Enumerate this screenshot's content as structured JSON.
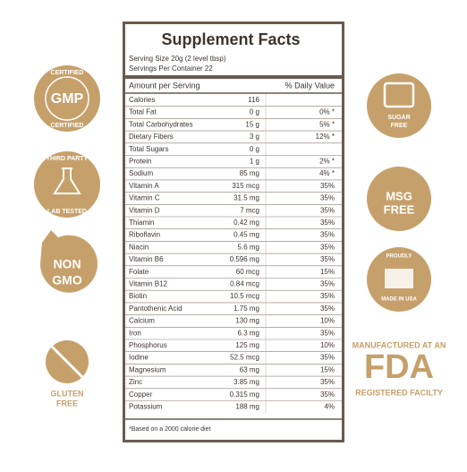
{
  "label": {
    "title": "Supplement Facts",
    "serving_size": "Serving Size 20g (2 level tbsp)",
    "servings": "Servings Per Container 22",
    "header": [
      "Amount per Serving",
      "% Daily Value"
    ],
    "rows": [
      [
        "Calories",
        "116"
      ],
      [
        "Total Fat",
        "0 g",
        "0% *"
      ],
      [
        "Total Carbohydrates",
        "15 g",
        "5% *"
      ],
      [
        "Dietary Fibers",
        "3 g",
        "12% *"
      ],
      [
        "Total Sugars",
        "0 g"
      ],
      [
        "Protein",
        "1 g",
        "2% *"
      ],
      [
        "Sodium",
        "85 mg",
        "4% *"
      ],
      [
        "Vitamin A",
        "315 mcg",
        "35%"
      ],
      [
        "Vitamin C",
        "31.5 mg",
        "35%"
      ],
      [
        "Vitamin D",
        "7 mcg",
        "35%"
      ],
      [
        "Thiamin",
        "0.42 mg",
        "35%"
      ],
      [
        "Riboflavin",
        "0.45 mg",
        "35%"
      ],
      [
        "Niacin",
        "5.6 mg",
        "35%"
      ],
      [
        "Vitamin B6",
        "0.596 mg",
        "35%"
      ],
      [
        "Folate",
        "60 mcg",
        "15%"
      ],
      [
        "Vitamin B12",
        "0.84 mcg",
        "35%"
      ],
      [
        "Biotin",
        "10.5 mcg",
        "35%"
      ],
      [
        "Pantothenic Acid",
        "1.75 mg",
        "35%"
      ],
      [
        "Calcium",
        "130 mg",
        "10%"
      ],
      [
        "Iron",
        "6.3 mg",
        "35%"
      ],
      [
        "Phosphorus",
        "125 mg",
        "10%"
      ],
      [
        "Iodine",
        "52.5 mcg",
        "35%"
      ],
      [
        "Magnesium",
        "63 mg",
        "15%"
      ],
      [
        "Zinc",
        "3.85 mg",
        "35%"
      ],
      [
        "Copper",
        "0.315 mg",
        "35%"
      ],
      [
        "Potassium",
        "188 mg",
        "4%"
      ]
    ],
    "footnote": "*Based on a 2000 calorie diet"
  },
  "badges": {
    "gmp": [
      "CERTIFIED",
      "GMP",
      "CERTIFIED"
    ],
    "lab": [
      "THIRD PARTY",
      "LAB TESTED"
    ],
    "gmo": [
      "NON",
      "GMO"
    ],
    "gluten": [
      "GLUTEN",
      "FREE"
    ],
    "sugar": [
      "SUGAR",
      "FREE"
    ],
    "msg": [
      "MSG",
      "FREE"
    ],
    "usa": [
      "PROUDLY",
      "MADE IN USA"
    ],
    "fda": [
      "MANUFACTURED AT AN",
      "FDA",
      "REGISTERED FACILTY"
    ]
  }
}
